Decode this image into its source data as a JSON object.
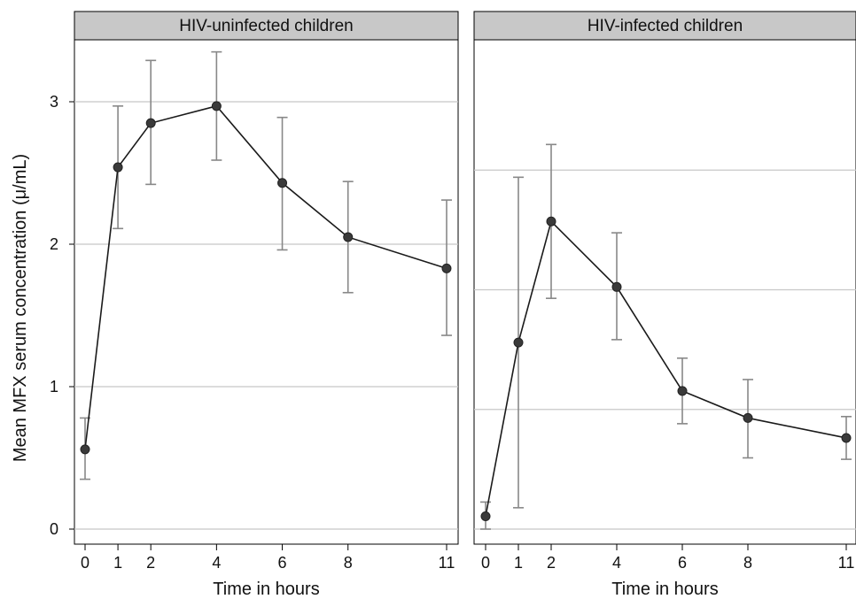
{
  "chart_data": [
    {
      "type": "line",
      "title": "HIV-uninfected children",
      "xlabel": "Time in hours",
      "ylabel": "Mean MFX serum concentration (μ/mL)",
      "x": [
        0,
        1,
        2,
        4,
        6,
        8,
        11
      ],
      "x_ticks": [
        "0",
        "1",
        "2",
        "4",
        "6",
        "8",
        "11"
      ],
      "y_ticks": [
        "0",
        "1",
        "2",
        "3"
      ],
      "ylim": [
        -0.05,
        3.5
      ],
      "grid": true,
      "series": [
        {
          "values": [
            0.56,
            2.54,
            2.85,
            2.97,
            2.43,
            2.05,
            1.83
          ],
          "error_low": [
            0.35,
            2.11,
            2.42,
            2.59,
            1.96,
            1.66,
            1.36
          ],
          "error_high": [
            0.78,
            2.97,
            3.29,
            3.35,
            2.89,
            2.44,
            2.31
          ]
        }
      ]
    },
    {
      "type": "line",
      "title": "HIV-infected children",
      "xlabel": "Time in hours",
      "x": [
        0,
        1,
        2,
        4,
        6,
        8,
        11
      ],
      "x_ticks": [
        "0",
        "1",
        "2",
        "4",
        "6",
        "8",
        "11"
      ],
      "y_ticks": [],
      "ylim": [
        -0.05,
        3.5
      ],
      "grid": true,
      "series": [
        {
          "values": [
            0.09,
            1.31,
            2.16,
            1.7,
            0.97,
            0.78,
            0.64
          ],
          "error_low": [
            0.0,
            0.15,
            1.62,
            1.33,
            0.74,
            0.5,
            0.49
          ],
          "error_high": [
            0.19,
            2.47,
            2.7,
            2.08,
            1.2,
            1.05,
            0.79
          ]
        }
      ]
    }
  ],
  "colors": {
    "strip_fill": "#c8c8c8",
    "gridline": "#c8c8c8",
    "line": "#1a1a1a",
    "marker": "#3a3a3a",
    "error_bar": "#888888",
    "frame": "#000000"
  }
}
